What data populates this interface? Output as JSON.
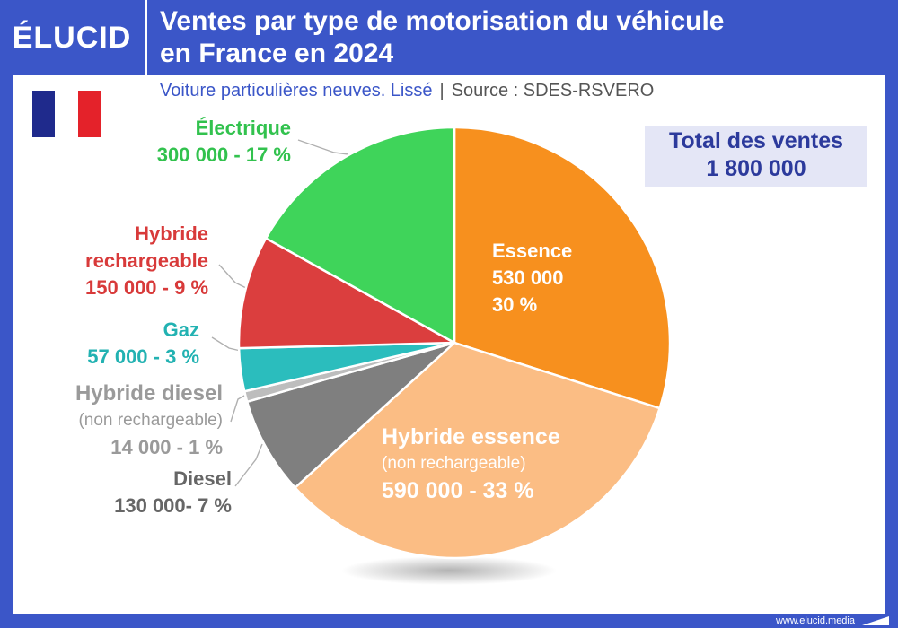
{
  "header": {
    "logo": "ÉLUCID",
    "title_line1": "Ventes par type de motorisation du véhicule",
    "title_line2": "en France en 2024"
  },
  "subtitle": {
    "text": "Voiture particulières neuves. Lissé",
    "separator": "|",
    "source": "Source : SDES-RSVERO"
  },
  "flag": {
    "colors": [
      "#1f2a8c",
      "#ffffff",
      "#e4222a"
    ]
  },
  "total": {
    "label": "Total des ventes",
    "value": "1 800 000"
  },
  "footer": {
    "url": "www.elucid.media"
  },
  "chart_data": {
    "type": "pie",
    "title": "Ventes par type de motorisation du véhicule en France en 2024",
    "total": 1800000,
    "slices": [
      {
        "name": "Essence",
        "value": 530000,
        "percent": 30,
        "color": "#f7901e",
        "label_lines": [
          "Essence",
          "530 000",
          "30 %"
        ]
      },
      {
        "name": "Hybride essence (non rechargeable)",
        "value": 590000,
        "percent": 33,
        "color": "#fbbd84",
        "label_lines": [
          "Hybride essence",
          "(non rechargeable)",
          "590 000 - 33 %"
        ]
      },
      {
        "name": "Diesel",
        "value": 130000,
        "percent": 7,
        "color": "#7f7f7f",
        "label_lines": [
          "Diesel",
          "130 000- 7 %"
        ]
      },
      {
        "name": "Hybride diesel (non rechargeable)",
        "value": 14000,
        "percent": 1,
        "color": "#bdbdbd",
        "label_lines": [
          "Hybride diesel",
          "(non rechargeable)",
          "14 000 - 1 %"
        ]
      },
      {
        "name": "Gaz",
        "value": 57000,
        "percent": 3,
        "color": "#2bbdbd",
        "label_lines": [
          "Gaz",
          "57 000 - 3 %"
        ]
      },
      {
        "name": "Hybride rechargeable",
        "value": 150000,
        "percent": 9,
        "color": "#db3e3e",
        "label_lines": [
          "Hybride",
          "rechargeable",
          "150 000 - 9 %"
        ]
      },
      {
        "name": "Électrique",
        "value": 300000,
        "percent": 17,
        "color": "#3fd45a",
        "label_lines": [
          "Électrique",
          "300 000 - 17 %"
        ]
      }
    ],
    "label_colors": {
      "Essence": "#ffffff",
      "Hybride essence (non rechargeable)": "#ffffff",
      "Diesel": "#666666",
      "Hybride diesel (non rechargeable)": "#9a9a9a",
      "Gaz": "#22b2b2",
      "Hybride rechargeable": "#d83a3a",
      "Électrique": "#32c24e"
    }
  }
}
